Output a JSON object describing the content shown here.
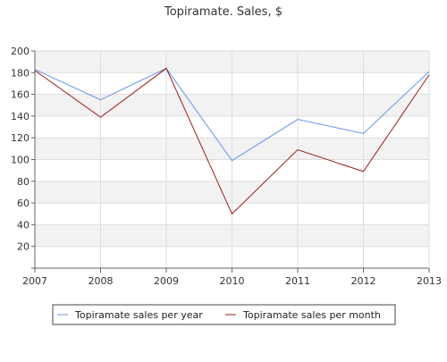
{
  "chart_data": {
    "type": "line",
    "title": "Topiramate. Sales, $",
    "xlabel": "",
    "ylabel": "",
    "x": [
      "2007",
      "2008",
      "2009",
      "2010",
      "2011",
      "2012",
      "2013"
    ],
    "ylim": [
      0,
      200
    ],
    "yticks": [
      "20",
      "40",
      "60",
      "80",
      "100",
      "120",
      "140",
      "160",
      "180",
      "200"
    ],
    "grid": true,
    "legend_position": "bottom",
    "series": [
      {
        "name": "Topiramate sales per year",
        "color": "#6495ED",
        "values": [
          183,
          155,
          184,
          99,
          137,
          124,
          181
        ]
      },
      {
        "name": "Topiramate sales per month",
        "color": "#9B1C1C",
        "values": [
          182,
          139,
          184,
          50,
          109,
          89,
          178
        ]
      }
    ]
  }
}
